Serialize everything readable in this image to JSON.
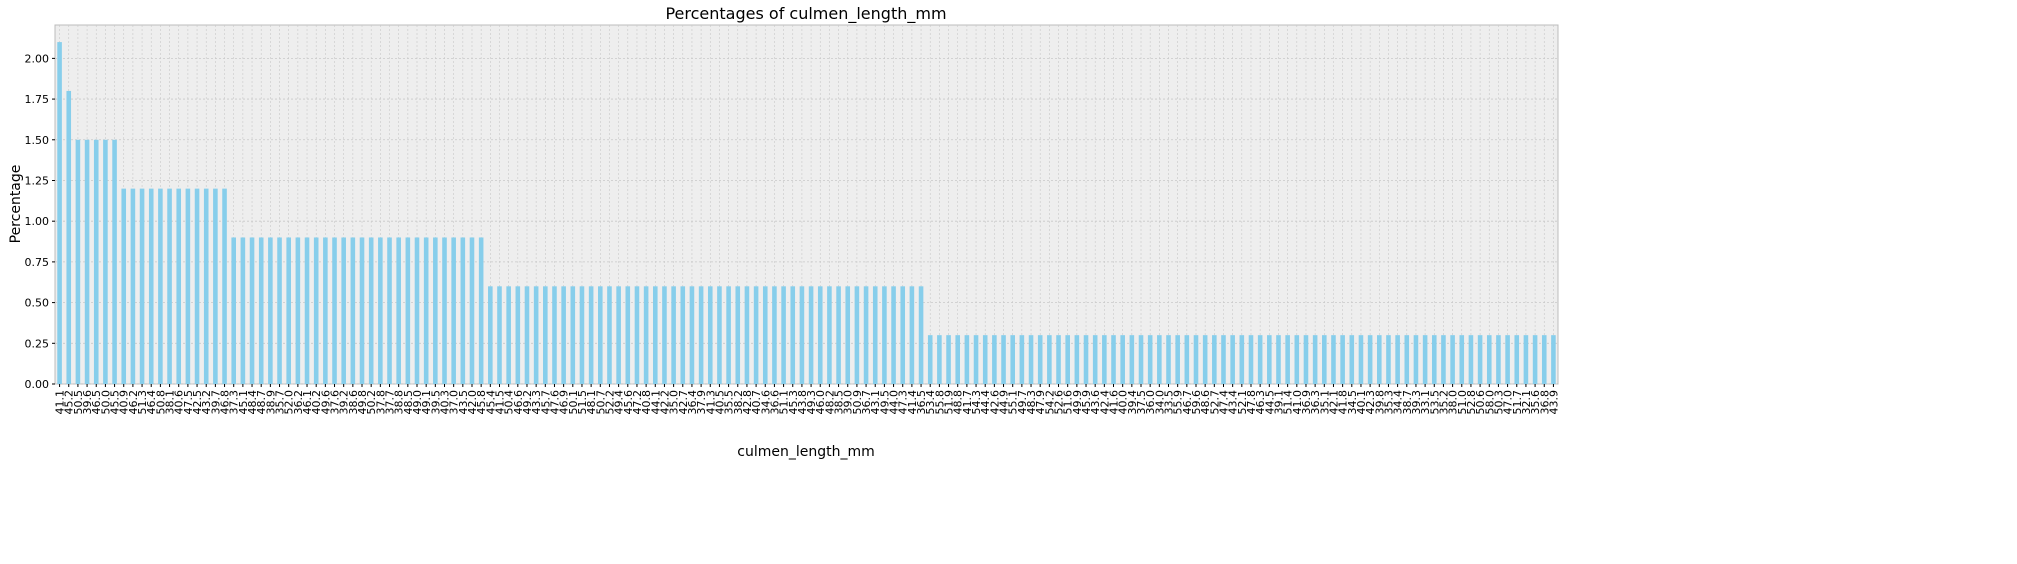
{
  "chart_data": {
    "type": "bar",
    "title": "Percentages of culmen_length_mm",
    "xlabel": "culmen_length_mm",
    "ylabel": "Percentage",
    "color": "#87ceeb",
    "grid": true,
    "ylim": [
      0,
      2.205
    ],
    "yticks": [
      {
        "value": 0,
        "label": "0.00"
      },
      {
        "value": 0.25,
        "label": "0.25"
      },
      {
        "value": 0.5,
        "label": "0.50"
      },
      {
        "value": 0.75,
        "label": "0.75"
      },
      {
        "value": 1,
        "label": "1.00"
      },
      {
        "value": 1.25,
        "label": "1.25"
      },
      {
        "value": 1.5,
        "label": "1.50"
      },
      {
        "value": 1.75,
        "label": "1.75"
      },
      {
        "value": 2,
        "label": "2.00"
      }
    ],
    "categories": [
      "41.1",
      "45.2",
      "50.5",
      "39.6",
      "46.5",
      "50.0",
      "45.5",
      "40.9",
      "46.2",
      "51.3",
      "46.4",
      "50.8",
      "38.1",
      "40.6",
      "47.5",
      "42.5",
      "43.2",
      "39.7",
      "46.8",
      "37.3",
      "45.1",
      "48.4",
      "48.7",
      "38.9",
      "35.7",
      "52.0",
      "36.2",
      "46.1",
      "40.2",
      "49.6",
      "37.6",
      "39.2",
      "38.6",
      "49.8",
      "50.2",
      "37.8",
      "37.7",
      "38.8",
      "48.5",
      "49.0",
      "49.1",
      "39.5",
      "40.3",
      "37.0",
      "43.5",
      "42.0",
      "45.8",
      "45.4",
      "41.5",
      "50.4",
      "46.6",
      "49.2",
      "43.3",
      "45.7",
      "47.6",
      "46.9",
      "50.1",
      "51.5",
      "48.1",
      "50.7",
      "52.2",
      "49.4",
      "45.6",
      "47.2",
      "40.8",
      "44.1",
      "42.2",
      "35.0",
      "42.7",
      "36.4",
      "37.9",
      "41.3",
      "40.5",
      "35.5",
      "38.2",
      "42.8",
      "40.7",
      "34.6",
      "36.6",
      "51.1",
      "45.3",
      "43.8",
      "49.3",
      "46.0",
      "48.2",
      "38.5",
      "39.0",
      "50.9",
      "36.7",
      "43.1",
      "49.5",
      "44.0",
      "47.3",
      "41.4",
      "36.5",
      "53.4",
      "55.8",
      "51.9",
      "48.8",
      "41.7",
      "54.3",
      "44.4",
      "42.6",
      "44.9",
      "55.1",
      "49.7",
      "48.3",
      "47.9",
      "54.2",
      "52.6",
      "51.6",
      "49.9",
      "45.9",
      "43.6",
      "42.4",
      "41.6",
      "40.0",
      "39.4",
      "37.5",
      "36.0",
      "34.0",
      "33.5",
      "55.9",
      "46.7",
      "59.6",
      "48.6",
      "52.7",
      "47.4",
      "43.4",
      "52.1",
      "47.8",
      "46.3",
      "44.5",
      "39.1",
      "51.4",
      "41.0",
      "36.9",
      "36.3",
      "35.1",
      "42.1",
      "41.8",
      "34.5",
      "40.1",
      "42.3",
      "39.8",
      "35.3",
      "34.4",
      "38.7",
      "39.3",
      "33.1",
      "53.5",
      "35.2",
      "38.0",
      "51.0",
      "52.8",
      "50.6",
      "58.0",
      "50.3",
      "47.0",
      "51.7",
      "32.1",
      "35.6",
      "36.8",
      "43.9"
    ],
    "values": [
      2.1,
      1.8,
      1.5,
      1.5,
      1.5,
      1.5,
      1.5,
      1.2,
      1.2,
      1.2,
      1.2,
      1.2,
      1.2,
      1.2,
      1.2,
      1.2,
      1.2,
      1.2,
      1.2,
      0.9,
      0.9,
      0.9,
      0.9,
      0.9,
      0.9,
      0.9,
      0.9,
      0.9,
      0.9,
      0.9,
      0.9,
      0.9,
      0.9,
      0.9,
      0.9,
      0.9,
      0.9,
      0.9,
      0.9,
      0.9,
      0.9,
      0.9,
      0.9,
      0.9,
      0.9,
      0.9,
      0.9,
      0.6,
      0.6,
      0.6,
      0.6,
      0.6,
      0.6,
      0.6,
      0.6,
      0.6,
      0.6,
      0.6,
      0.6,
      0.6,
      0.6,
      0.6,
      0.6,
      0.6,
      0.6,
      0.6,
      0.6,
      0.6,
      0.6,
      0.6,
      0.6,
      0.6,
      0.6,
      0.6,
      0.6,
      0.6,
      0.6,
      0.6,
      0.6,
      0.6,
      0.6,
      0.6,
      0.6,
      0.6,
      0.6,
      0.6,
      0.6,
      0.6,
      0.6,
      0.6,
      0.6,
      0.6,
      0.6,
      0.6,
      0.6,
      0.3,
      0.3,
      0.3,
      0.3,
      0.3,
      0.3,
      0.3,
      0.3,
      0.3,
      0.3,
      0.3,
      0.3,
      0.3,
      0.3,
      0.3,
      0.3,
      0.3,
      0.3,
      0.3,
      0.3,
      0.3,
      0.3,
      0.3,
      0.3,
      0.3,
      0.3,
      0.3,
      0.3,
      0.3,
      0.3,
      0.3,
      0.3,
      0.3,
      0.3,
      0.3,
      0.3,
      0.3,
      0.3,
      0.3,
      0.3,
      0.3,
      0.3,
      0.3,
      0.3,
      0.3,
      0.3,
      0.3,
      0.3,
      0.3,
      0.3,
      0.3,
      0.3,
      0.3,
      0.3,
      0.3,
      0.3,
      0.3,
      0.3,
      0.3,
      0.3,
      0.3,
      0.3,
      0.3,
      0.3,
      0.3,
      0.3,
      0.3,
      0.3,
      0.3
    ]
  }
}
